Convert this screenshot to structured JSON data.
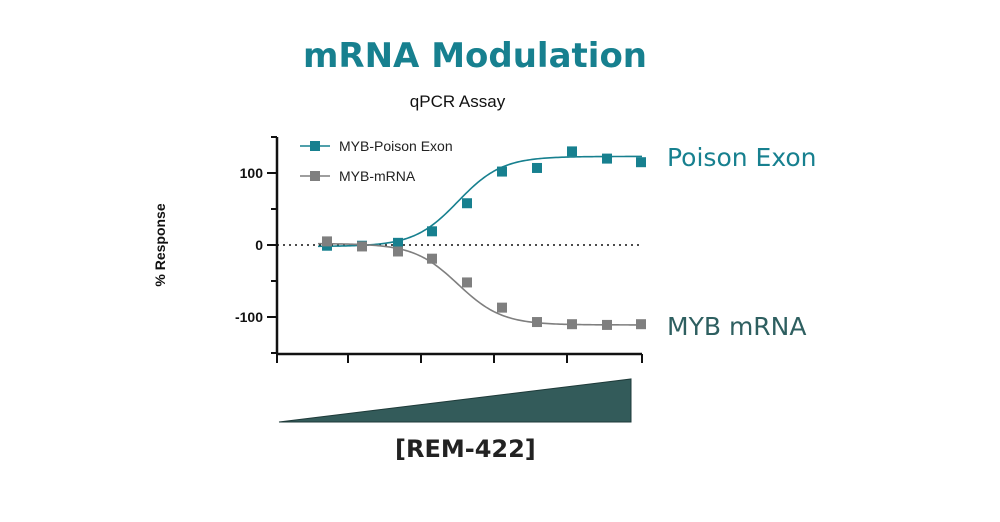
{
  "chart_data": {
    "type": "line",
    "title": "mRNA Modulation",
    "subtitle": "qPCR Assay",
    "xlabel": "[REM-422]",
    "ylabel": "% Response",
    "ylim": [
      -150,
      150
    ],
    "yticks": [
      -100,
      0,
      100
    ],
    "x": [
      1,
      2,
      3,
      4,
      5,
      6,
      7,
      8,
      9,
      10
    ],
    "series": [
      {
        "name": "MYB-Poison Exon",
        "end_label": "Poison Exon",
        "color": "#17808F",
        "values": [
          -1,
          -1,
          3,
          19,
          58,
          102,
          107,
          130,
          120,
          115
        ]
      },
      {
        "name": "MYB-mRNA",
        "end_label": "MYB mRNA",
        "color": "#7F7F7F",
        "values": [
          5,
          -2,
          -9,
          -19,
          -52,
          -87,
          -107,
          -110,
          -111,
          -110
        ]
      }
    ],
    "zero_line": "dotted",
    "legend": "top-left",
    "concentration_wedge": "increasing left to right"
  }
}
